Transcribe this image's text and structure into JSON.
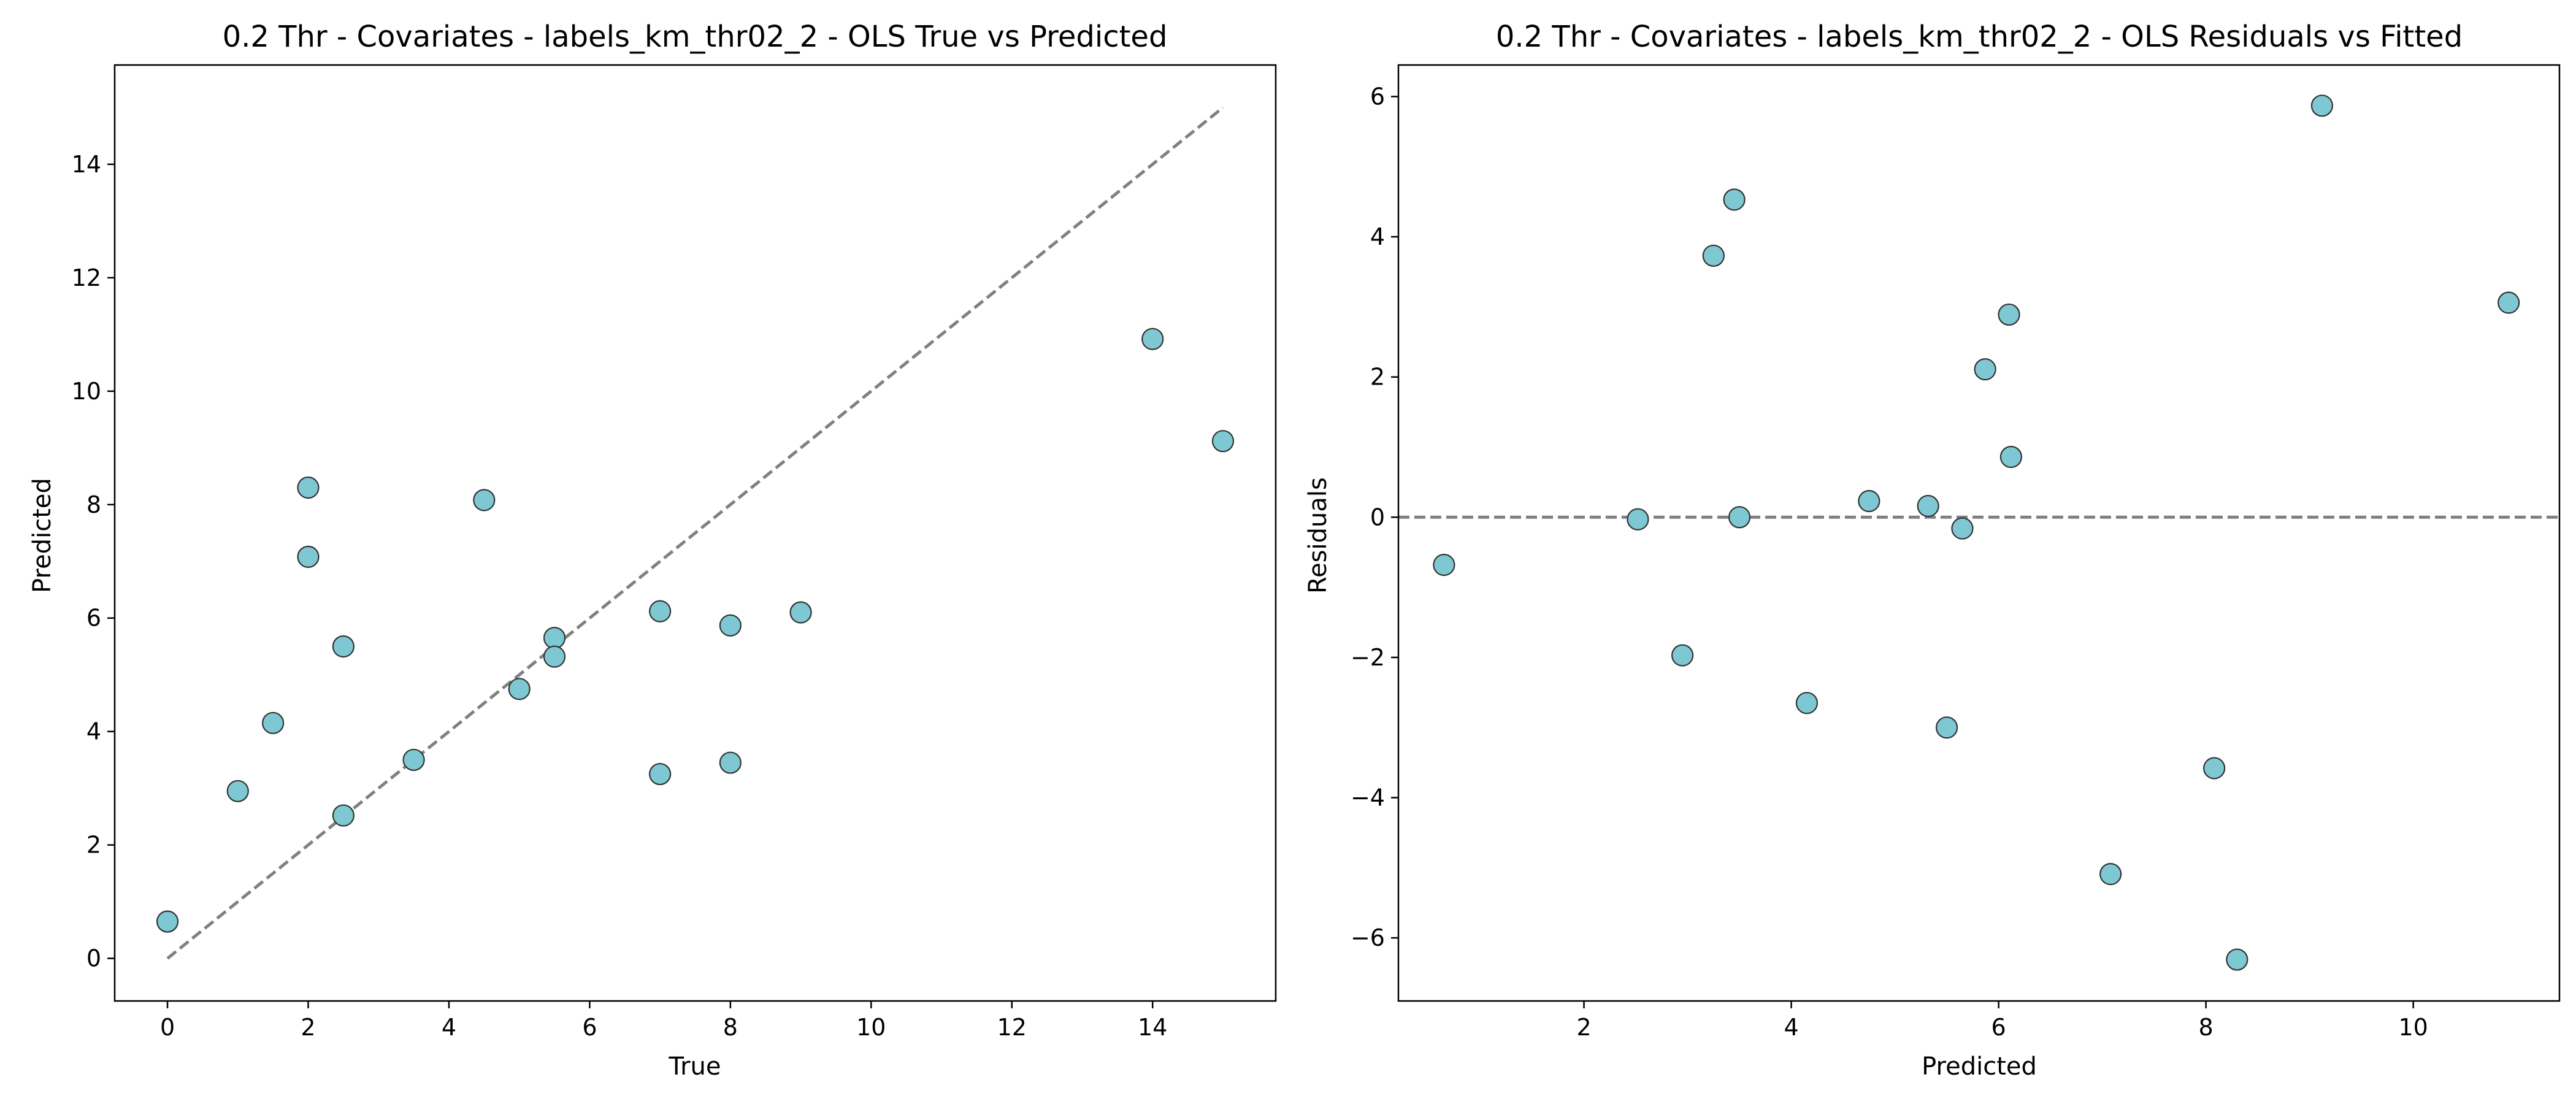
{
  "chart_data": [
    {
      "type": "scatter",
      "title": "0.2 Thr - Covariates - labels_km_thr02_2 - OLS True vs Predicted",
      "xlabel": "True",
      "ylabel": "Predicted",
      "xlim": [
        -0.75,
        15.75
      ],
      "ylim": [
        -0.75,
        15.75
      ],
      "xticks": [
        0,
        2,
        4,
        6,
        8,
        10,
        12,
        14
      ],
      "yticks": [
        0,
        2,
        4,
        6,
        8,
        10,
        12,
        14
      ],
      "grid": false,
      "marker_color": "#7ec8d3",
      "marker_edge_color": "#333333",
      "reference_line": {
        "style": "dashed",
        "color": "#808080",
        "from": [
          0,
          0
        ],
        "to": [
          15,
          15
        ]
      },
      "points": [
        {
          "x": 0,
          "y": 0.65
        },
        {
          "x": 1,
          "y": 2.95
        },
        {
          "x": 1.5,
          "y": 4.15
        },
        {
          "x": 2,
          "y": 8.3
        },
        {
          "x": 2,
          "y": 7.08
        },
        {
          "x": 2.5,
          "y": 5.5
        },
        {
          "x": 2.5,
          "y": 2.52
        },
        {
          "x": 3.5,
          "y": 3.5
        },
        {
          "x": 4.5,
          "y": 8.08
        },
        {
          "x": 5,
          "y": 4.75
        },
        {
          "x": 5.5,
          "y": 5.65
        },
        {
          "x": 5.5,
          "y": 5.32
        },
        {
          "x": 7,
          "y": 6.12
        },
        {
          "x": 7,
          "y": 3.25
        },
        {
          "x": 8,
          "y": 5.87
        },
        {
          "x": 8,
          "y": 3.45
        },
        {
          "x": 9,
          "y": 6.1
        },
        {
          "x": 14,
          "y": 10.92
        },
        {
          "x": 15,
          "y": 9.12
        }
      ]
    },
    {
      "type": "scatter",
      "title": "0.2 Thr - Covariates - labels_km_thr02_2 - OLS Residuals vs Fitted",
      "xlabel": "Predicted",
      "ylabel": "Residuals",
      "xlim": [
        0.21,
        11.41
      ],
      "ylim": [
        -6.9,
        6.45
      ],
      "xticks": [
        2,
        4,
        6,
        8,
        10
      ],
      "yticks": [
        -6,
        -4,
        -2,
        0,
        2,
        4,
        6
      ],
      "grid": false,
      "marker_color": "#7ec8d3",
      "marker_edge_color": "#333333",
      "reference_line": {
        "style": "dashed",
        "color": "#808080",
        "y": 0
      },
      "points": [
        {
          "x": 0.65,
          "y": -0.68
        },
        {
          "x": 2.52,
          "y": -0.03
        },
        {
          "x": 2.95,
          "y": -1.97
        },
        {
          "x": 3.25,
          "y": 3.73
        },
        {
          "x": 3.45,
          "y": 4.53
        },
        {
          "x": 3.5,
          "y": 0.0
        },
        {
          "x": 4.15,
          "y": -2.65
        },
        {
          "x": 4.75,
          "y": 0.23
        },
        {
          "x": 5.32,
          "y": 0.16
        },
        {
          "x": 5.5,
          "y": -3.0
        },
        {
          "x": 5.65,
          "y": -0.16
        },
        {
          "x": 5.87,
          "y": 2.11
        },
        {
          "x": 6.1,
          "y": 2.89
        },
        {
          "x": 6.12,
          "y": 0.86
        },
        {
          "x": 7.08,
          "y": -5.09
        },
        {
          "x": 8.08,
          "y": -3.58
        },
        {
          "x": 8.3,
          "y": -6.31
        },
        {
          "x": 9.12,
          "y": 5.87
        },
        {
          "x": 10.92,
          "y": 3.06
        }
      ]
    }
  ]
}
